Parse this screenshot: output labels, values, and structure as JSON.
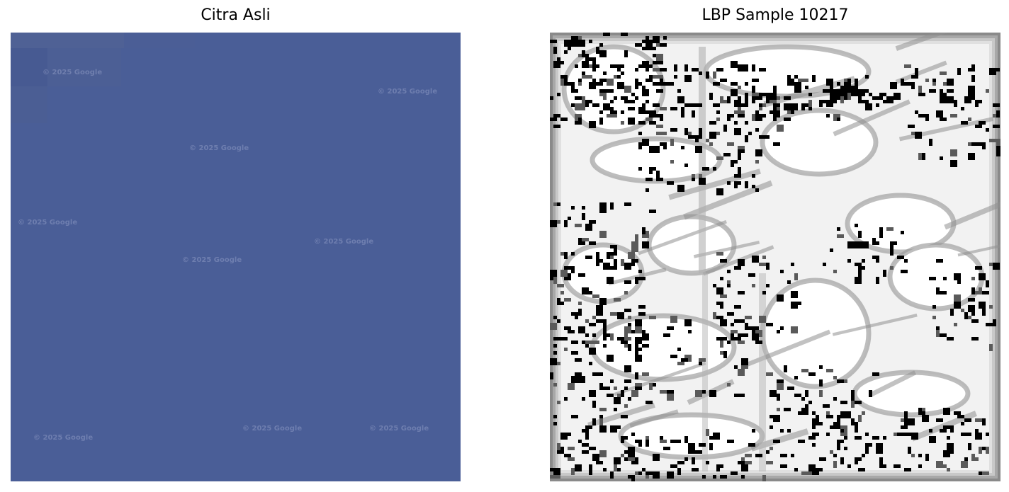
{
  "panels": {
    "left": {
      "title": "Citra Asli",
      "fill_color": "#4a5e97",
      "watermark_text": "© 2025 Google"
    },
    "right": {
      "title": "LBP Sample 10217",
      "background_color": "#f2f2f2"
    }
  }
}
